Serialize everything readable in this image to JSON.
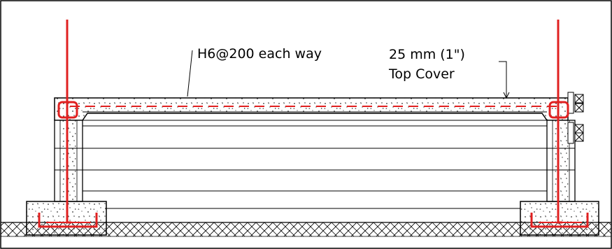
{
  "annotations": {
    "rebar_note": "H6@200 each way",
    "cover_line1": "25 mm (1\")",
    "cover_line2": "Top Cover"
  },
  "colors": {
    "rebar": "#e02020",
    "outline": "#000000",
    "background": "#ffffff"
  }
}
